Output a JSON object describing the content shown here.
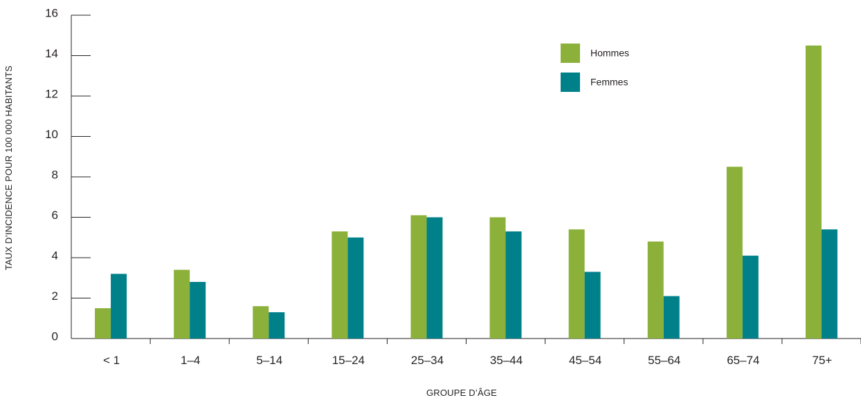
{
  "chart_data": {
    "type": "bar",
    "xlabel": "GROUPE D’ÂGE",
    "ylabel": "TAUX D’INCIDENCE POUR 100 000 HABITANTS",
    "ylim": [
      0,
      16
    ],
    "yticks": [
      0,
      2,
      4,
      6,
      8,
      10,
      12,
      14,
      16
    ],
    "categories": [
      "< 1",
      "1–4",
      "5–14",
      "15–24",
      "25–34",
      "35–44",
      "45–54",
      "55–64",
      "65–74",
      "75+"
    ],
    "series": [
      {
        "name": "Hommes",
        "color": "#8cb13a",
        "values": [
          1.5,
          3.4,
          1.6,
          5.3,
          6.1,
          6.0,
          5.4,
          4.8,
          8.5,
          14.5
        ]
      },
      {
        "name": "Femmes",
        "color": "#00818a",
        "values": [
          3.2,
          2.8,
          1.3,
          5.0,
          6.0,
          5.3,
          3.3,
          2.1,
          4.1,
          5.4
        ]
      }
    ],
    "legend_position": "top-right",
    "grid": false
  }
}
